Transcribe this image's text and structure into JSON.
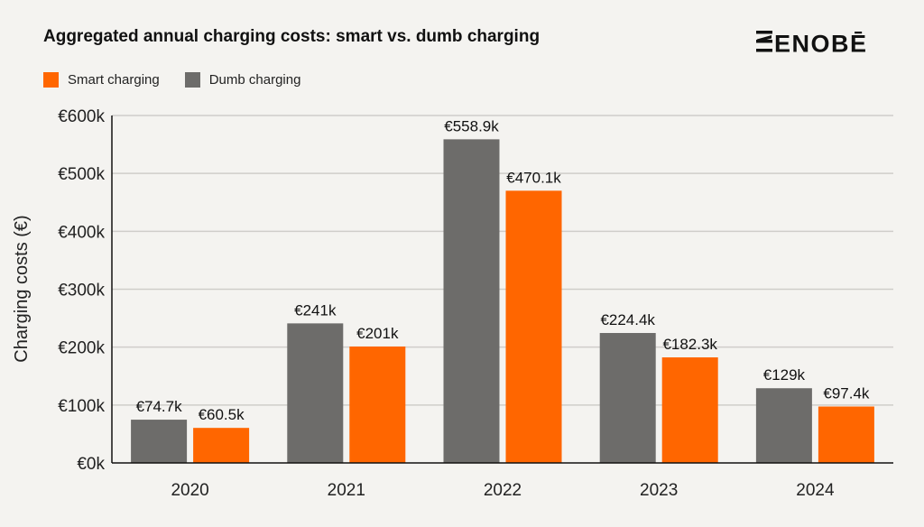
{
  "title": "Aggregated annual charging costs: smart vs. dumb charging",
  "brand": {
    "logo_text": "ENOBĒ"
  },
  "colors": {
    "smart": "#ff6600",
    "dumb": "#6d6c6a",
    "grid": "#cfcdca",
    "axis": "#111111",
    "background": "#f4f3f0"
  },
  "legend": [
    {
      "label": "Smart charging",
      "color": "#ff6600"
    },
    {
      "label": "Dumb charging",
      "color": "#6d6c6a"
    }
  ],
  "chart_data": {
    "type": "bar",
    "title": "Aggregated annual charging costs: smart vs. dumb charging",
    "xlabel": "",
    "ylabel": "Charging costs (€)",
    "categories": [
      "2020",
      "2021",
      "2022",
      "2023",
      "2024"
    ],
    "ylim": [
      0,
      600
    ],
    "yticks": [
      0,
      100,
      200,
      300,
      400,
      500,
      600
    ],
    "ytick_labels": [
      "€0k",
      "€100k",
      "€200k",
      "€300k",
      "€400k",
      "€500k",
      "€600k"
    ],
    "grid": true,
    "legend_position": "top-left",
    "series": [
      {
        "name": "Dumb charging",
        "color": "#6d6c6a",
        "values": [
          74.7,
          241,
          558.9,
          224.4,
          129
        ],
        "labels": [
          "€74.7k",
          "€241k",
          "€558.9k",
          "€224.4k",
          "€129k"
        ]
      },
      {
        "name": "Smart charging",
        "color": "#ff6600",
        "values": [
          60.5,
          201,
          470.1,
          182.3,
          97.4
        ],
        "labels": [
          "€60.5k",
          "€201k",
          "€470.1k",
          "€182.3k",
          "€97.4k"
        ]
      }
    ]
  }
}
